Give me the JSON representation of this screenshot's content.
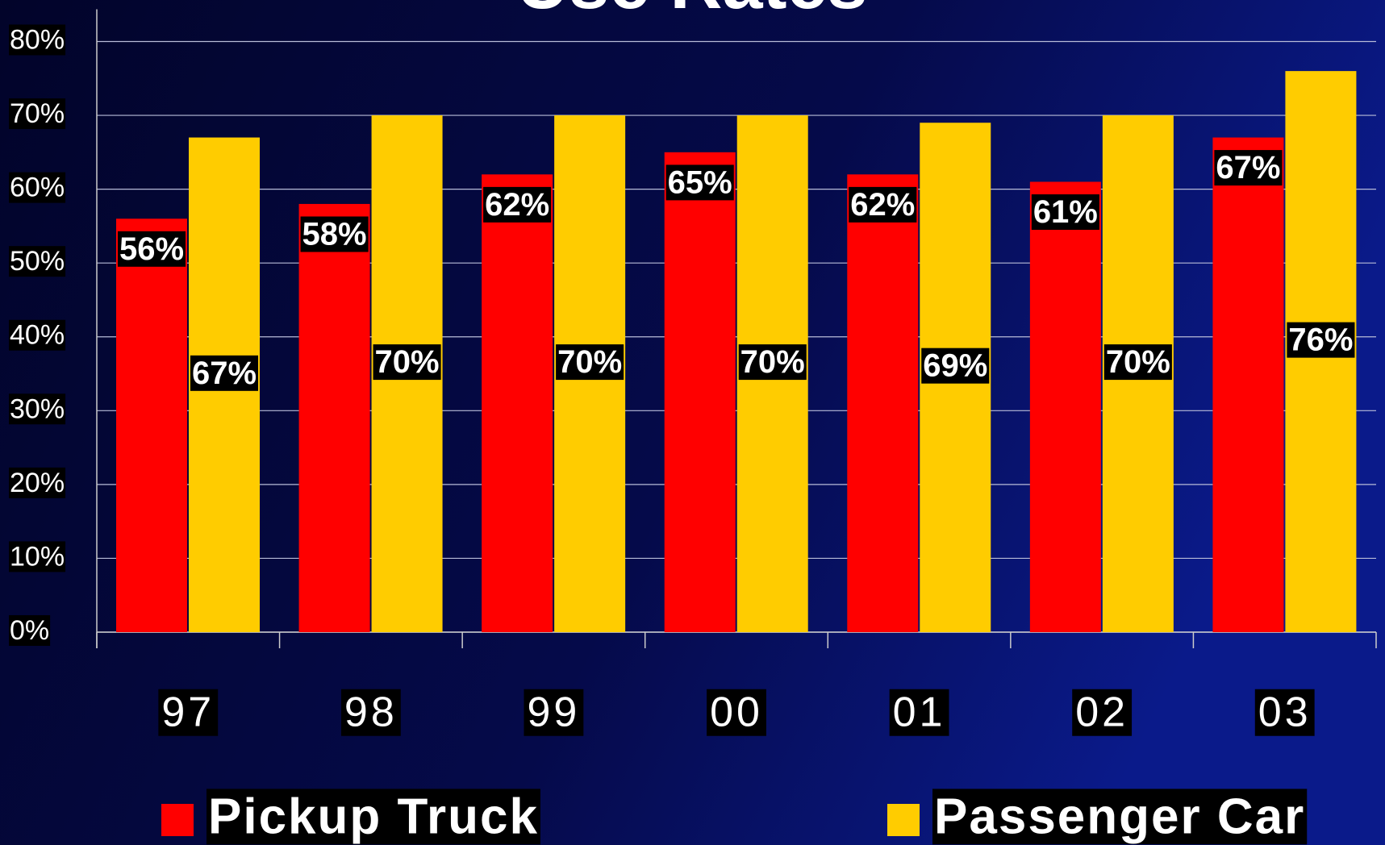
{
  "chart_data": {
    "type": "bar",
    "title": "Use Rates",
    "categories": [
      "97",
      "98",
      "99",
      "00",
      "01",
      "02",
      "03"
    ],
    "series": [
      {
        "name": "Pickup Truck",
        "color": "#ff0000",
        "values": [
          56,
          58,
          62,
          65,
          62,
          61,
          67
        ],
        "value_labels": [
          "56%",
          "58%",
          "62%",
          "65%",
          "62%",
          "61%",
          "67%"
        ]
      },
      {
        "name": "Passenger Car",
        "color": "#ffcc00",
        "values": [
          67,
          70,
          70,
          70,
          69,
          70,
          76
        ],
        "value_labels": [
          "67%",
          "70%",
          "70%",
          "70%",
          "69%",
          "70%",
          "76%"
        ]
      }
    ],
    "ylim": [
      0,
      80
    ],
    "yticks": [
      {
        "value": 0,
        "label": "0%"
      },
      {
        "value": 10,
        "label": "10%"
      },
      {
        "value": 20,
        "label": "20%"
      },
      {
        "value": 30,
        "label": "30%"
      },
      {
        "value": 40,
        "label": "40%"
      },
      {
        "value": 50,
        "label": "50%"
      },
      {
        "value": 60,
        "label": "60%"
      },
      {
        "value": 70,
        "label": "70%"
      },
      {
        "value": 80,
        "label": "80%"
      }
    ],
    "grid": true,
    "legend": "bottom"
  }
}
